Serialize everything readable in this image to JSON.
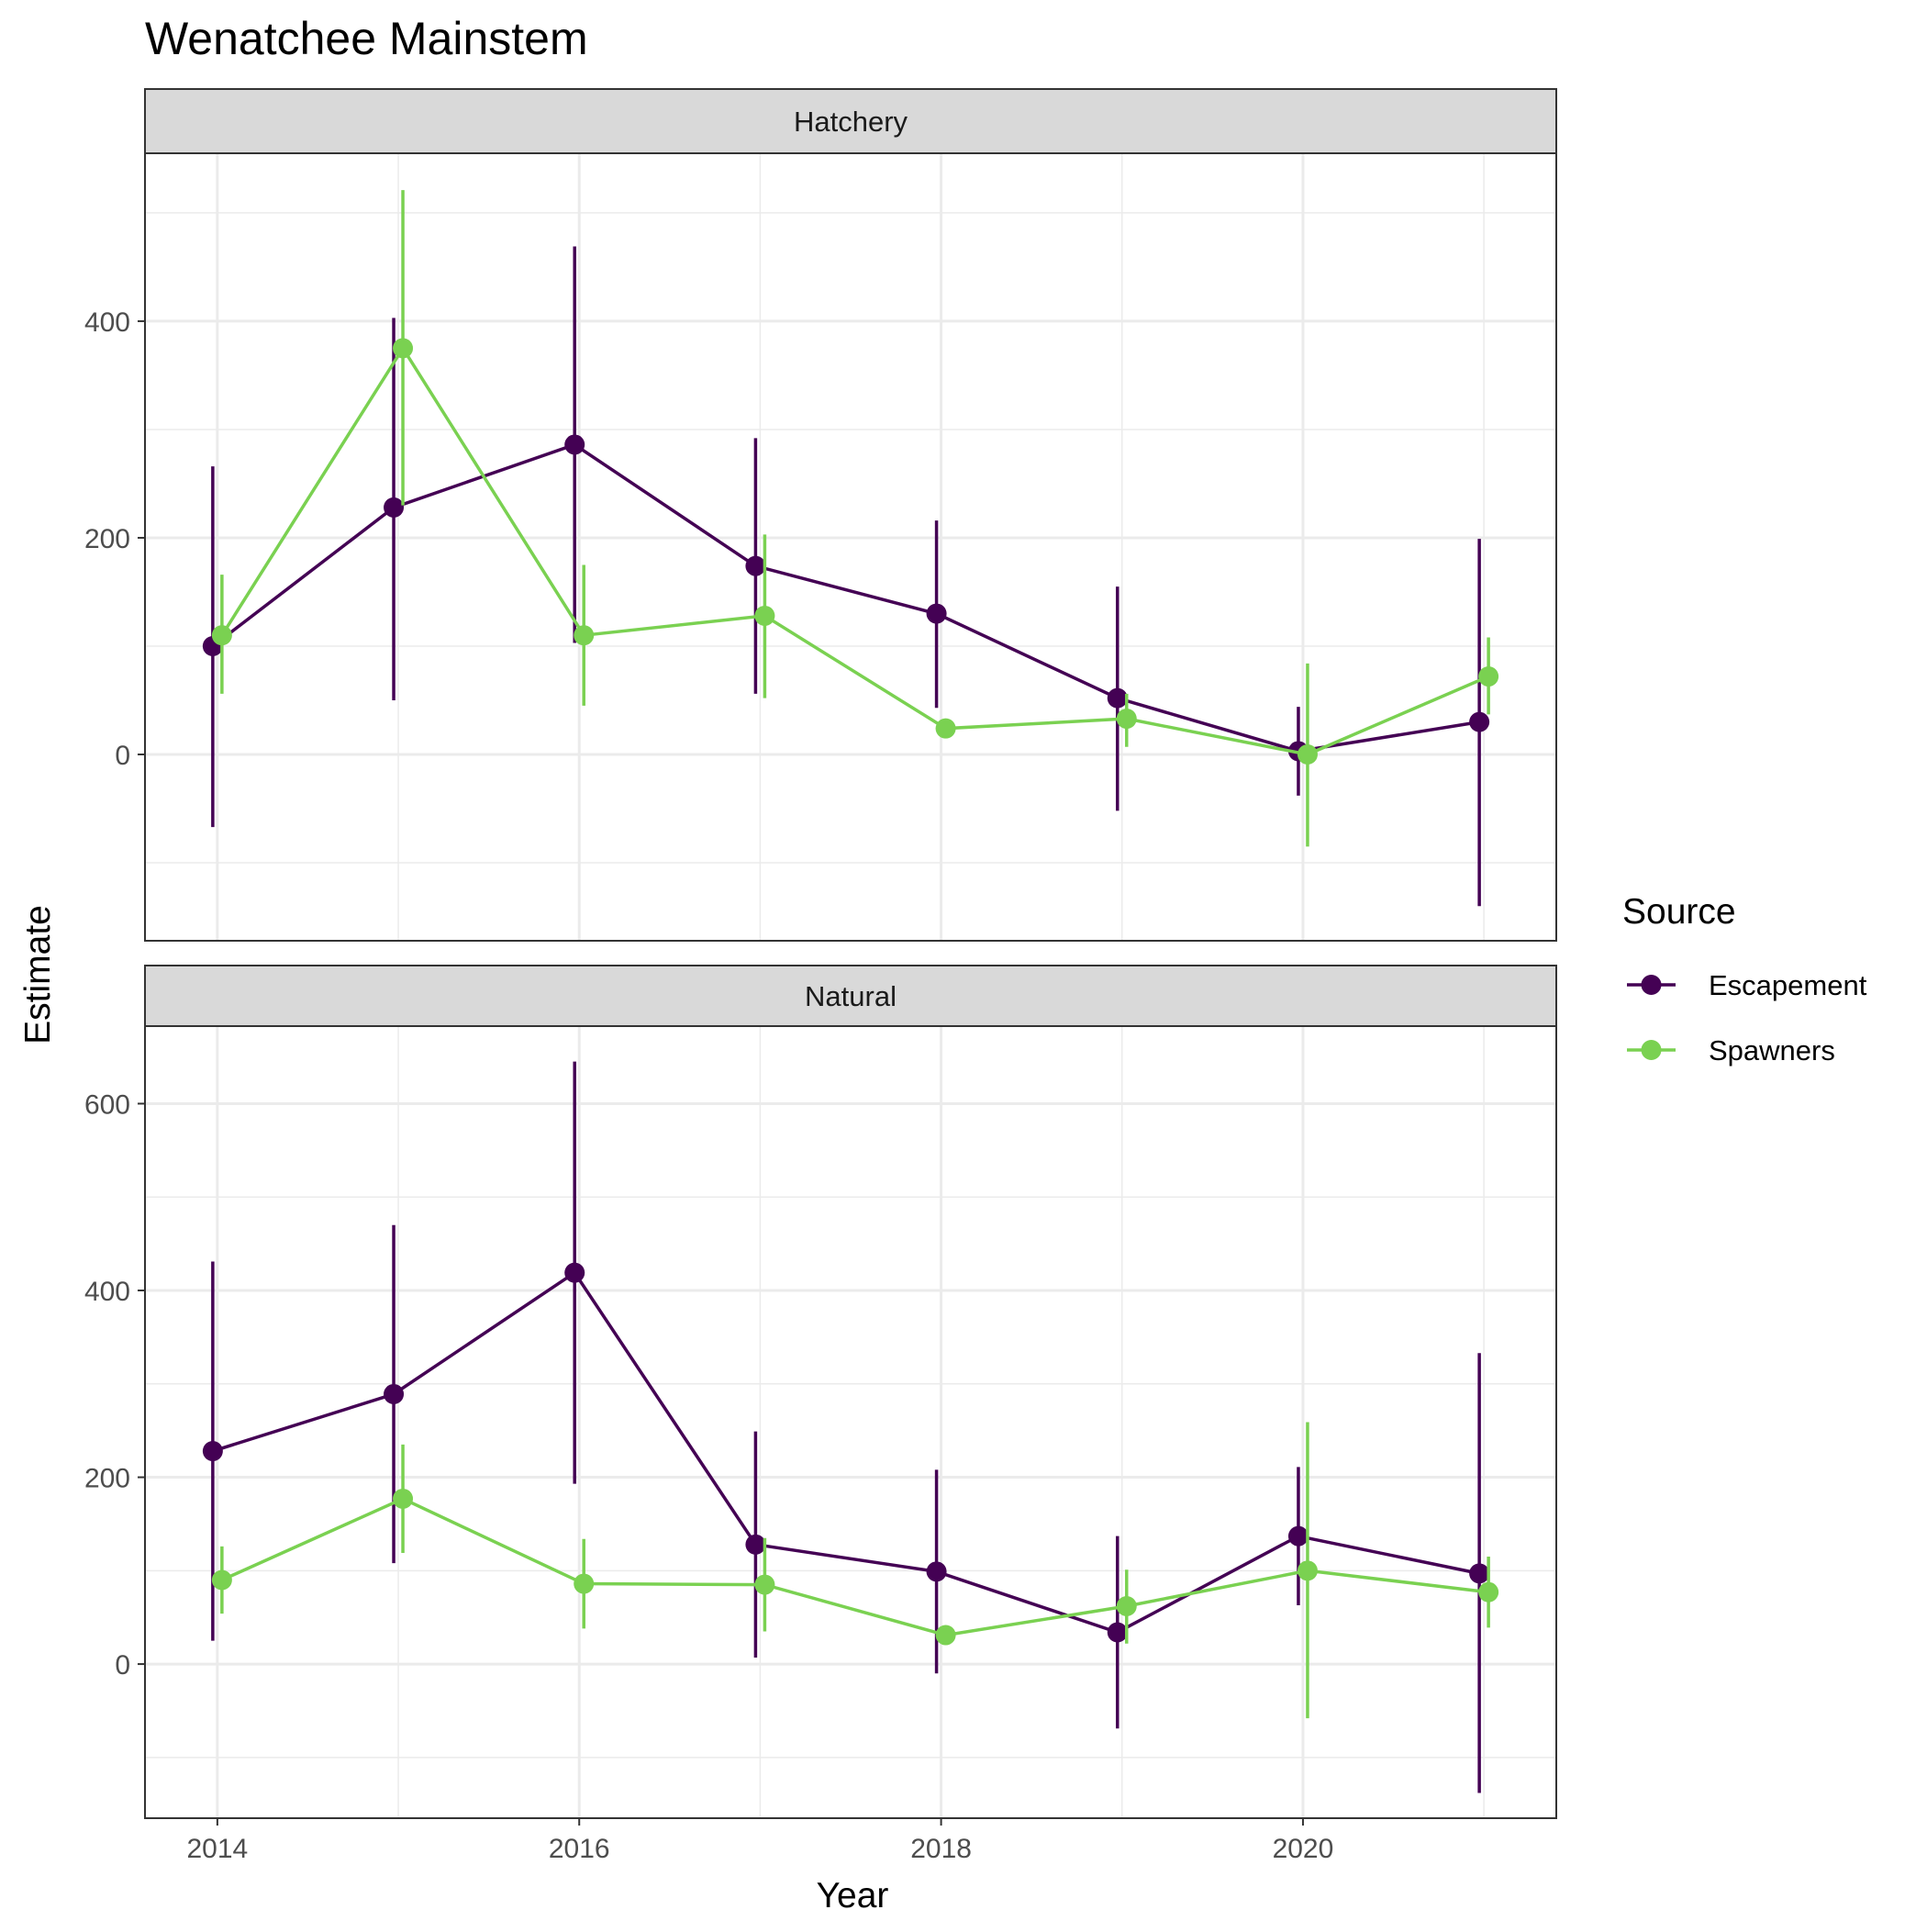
{
  "title": "Wenatchee Mainstem",
  "xlabel": "Year",
  "ylabel": "Estimate",
  "legend": {
    "title": "Source",
    "position": "right",
    "items": [
      {
        "name": "Escapement",
        "color": "#440154"
      },
      {
        "name": "Spawners",
        "color": "#7AD151"
      }
    ]
  },
  "chart_data": [
    {
      "type": "line",
      "panel": "Hatchery",
      "x": [
        2014,
        2015,
        2016,
        2017,
        2018,
        2019,
        2020,
        2021
      ],
      "xlim": [
        2013.6,
        2021.4
      ],
      "xticks": [
        2014,
        2016,
        2018,
        2020
      ],
      "ylim": [
        -172,
        555
      ],
      "yticks": [
        0,
        200,
        400
      ],
      "grid": true,
      "series": [
        {
          "name": "Escapement",
          "color": "#440154",
          "values": [
            100,
            228,
            286,
            174,
            130,
            52,
            3,
            30
          ],
          "lower": [
            -67,
            50,
            103,
            56,
            43,
            -52,
            -38,
            -140
          ],
          "upper": [
            266,
            403,
            469,
            292,
            216,
            155,
            44,
            199
          ]
        },
        {
          "name": "Spawners",
          "color": "#7AD151",
          "values": [
            110,
            375,
            110,
            128,
            24,
            33,
            0,
            72
          ],
          "lower": [
            56,
            230,
            45,
            52,
            24,
            7,
            -85,
            37
          ],
          "upper": [
            166,
            521,
            175,
            203,
            24,
            56,
            84,
            108
          ]
        }
      ]
    },
    {
      "type": "line",
      "panel": "Natural",
      "x": [
        2014,
        2015,
        2016,
        2017,
        2018,
        2019,
        2020,
        2021
      ],
      "xlim": [
        2013.6,
        2021.4
      ],
      "xticks": [
        2014,
        2016,
        2018,
        2020
      ],
      "ylim": [
        -165,
        683
      ],
      "yticks": [
        0,
        200,
        400,
        600
      ],
      "grid": true,
      "series": [
        {
          "name": "Escapement",
          "color": "#440154",
          "values": [
            228,
            289,
            419,
            128,
            99,
            34,
            137,
            97
          ],
          "lower": [
            25,
            108,
            193,
            7,
            -10,
            -69,
            63,
            -138
          ],
          "upper": [
            431,
            470,
            645,
            249,
            208,
            137,
            211,
            333
          ]
        },
        {
          "name": "Spawners",
          "color": "#7AD151",
          "values": [
            90,
            177,
            86,
            85,
            31,
            62,
            100,
            77
          ],
          "lower": [
            54,
            119,
            38,
            35,
            31,
            22,
            -58,
            39
          ],
          "upper": [
            126,
            235,
            134,
            135,
            31,
            101,
            259,
            115
          ]
        }
      ]
    }
  ]
}
